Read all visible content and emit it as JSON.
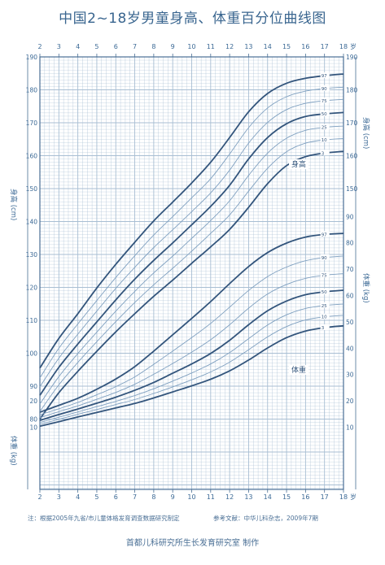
{
  "title": "中国2~18岁男童身高、体重百分位曲线图",
  "note": "注：根据2005年九省/市儿童体格发育调查数据研究制定",
  "reference": "参考文献：中华儿科杂志，2009年7期",
  "credit": "首都儿科研究所生长发育研究室  制作",
  "colors": {
    "grid": "#a8bed3",
    "axis": "#4a6f95",
    "text": "#3c6a96",
    "major_curve": "#33557c",
    "minor_curve": "#7fa0c0",
    "background": "#ffffff"
  },
  "chart_data": [
    {
      "type": "line",
      "name": "身高",
      "x_axis": {
        "label": "岁",
        "ticks": [
          2,
          3,
          4,
          5,
          6,
          7,
          8,
          9,
          10,
          11,
          12,
          13,
          14,
          15,
          16,
          17,
          18
        ],
        "range": [
          2,
          18
        ]
      },
      "y_axis": {
        "label": "身高 (cm)",
        "unit": "cm",
        "range": [
          75,
          190
        ],
        "ticks": [
          80,
          90,
          100,
          110,
          120,
          130,
          140,
          150,
          160,
          170,
          180,
          190
        ],
        "left_tick_range": [
          80,
          190
        ],
        "right_tick_range": [
          150,
          190
        ]
      },
      "grid": true,
      "x": [
        2,
        3,
        4,
        5,
        6,
        7,
        8,
        9,
        10,
        11,
        12,
        13,
        14,
        15,
        16,
        17,
        18
      ],
      "series": [
        {
          "name": "97",
          "values": [
            95.5,
            104.5,
            112.0,
            119.8,
            127.0,
            133.7,
            140.2,
            145.9,
            151.7,
            158.0,
            165.5,
            173.3,
            178.9,
            182.0,
            183.5,
            184.3,
            184.8
          ]
        },
        {
          "name": "90",
          "values": [
            92.5,
            101.5,
            108.9,
            116.0,
            123.0,
            129.6,
            135.9,
            141.5,
            147.2,
            153.0,
            160.5,
            168.5,
            174.5,
            177.9,
            179.6,
            180.4,
            180.8
          ]
        },
        {
          "name": "75",
          "values": [
            89.8,
            98.5,
            105.8,
            112.8,
            119.7,
            126.1,
            132.1,
            137.5,
            143.0,
            148.7,
            155.6,
            163.8,
            170.1,
            174.0,
            175.9,
            176.7,
            177.1
          ]
        },
        {
          "name": "50",
          "values": [
            87.2,
            95.7,
            102.8,
            109.5,
            116.2,
            122.5,
            128.2,
            133.5,
            139.0,
            144.6,
            151.0,
            159.0,
            165.5,
            169.7,
            171.9,
            172.7,
            173.1
          ]
        },
        {
          "name": "25",
          "values": [
            84.6,
            92.9,
            99.9,
            106.4,
            112.8,
            118.8,
            124.4,
            129.5,
            134.9,
            140.3,
            146.3,
            154.0,
            160.8,
            165.3,
            167.7,
            168.6,
            169.0
          ]
        },
        {
          "name": "10",
          "values": [
            82.3,
            90.4,
            97.2,
            103.5,
            109.6,
            115.4,
            120.8,
            125.8,
            131.0,
            136.4,
            142.0,
            149.2,
            156.2,
            161.2,
            163.8,
            164.8,
            165.2
          ]
        },
        {
          "name": "3",
          "values": [
            80.0,
            88.0,
            94.5,
            100.6,
            106.5,
            112.0,
            117.3,
            122.2,
            127.3,
            132.3,
            137.6,
            144.3,
            151.5,
            157.0,
            159.7,
            160.8,
            161.3
          ]
        }
      ]
    },
    {
      "type": "line",
      "name": "体重",
      "x_axis": {
        "label": "岁",
        "ticks": [
          2,
          3,
          4,
          5,
          6,
          7,
          8,
          9,
          10,
          11,
          12,
          13,
          14,
          15,
          16,
          17,
          18
        ],
        "range": [
          2,
          18
        ]
      },
      "y_axis": {
        "label": "体重 (kg)",
        "unit": "kg",
        "range": [
          5,
          95
        ],
        "ticks": [
          10,
          20,
          30,
          40,
          50,
          60,
          70,
          80,
          90
        ],
        "left_tick_range": [
          10,
          20
        ],
        "right_tick_range": [
          10,
          90
        ]
      },
      "grid": true,
      "x": [
        2,
        3,
        4,
        5,
        6,
        7,
        8,
        9,
        10,
        11,
        12,
        13,
        14,
        15,
        16,
        17,
        18
      ],
      "series": [
        {
          "name": "97",
          "values": [
            15.7,
            18.3,
            21.0,
            24.4,
            28.3,
            33.0,
            38.9,
            45.1,
            51.3,
            57.7,
            64.5,
            71.0,
            76.3,
            79.9,
            82.2,
            83.2,
            83.6
          ]
        },
        {
          "name": "90",
          "values": [
            14.7,
            17.0,
            19.4,
            22.3,
            25.4,
            29.1,
            33.9,
            38.9,
            44.0,
            49.4,
            55.6,
            61.9,
            67.2,
            70.8,
            73.2,
            74.4,
            75.0
          ]
        },
        {
          "name": "75",
          "values": [
            13.6,
            15.9,
            18.1,
            20.6,
            23.2,
            26.3,
            30.1,
            34.2,
            38.5,
            43.2,
            48.9,
            55.2,
            60.6,
            64.2,
            66.5,
            67.7,
            68.3
          ]
        },
        {
          "name": "50",
          "values": [
            12.6,
            14.8,
            16.9,
            19.1,
            21.4,
            24.0,
            27.0,
            30.5,
            34.0,
            38.0,
            43.0,
            48.9,
            54.2,
            57.9,
            60.3,
            61.4,
            62.0
          ]
        },
        {
          "name": "25",
          "values": [
            11.8,
            13.8,
            15.8,
            17.8,
            19.8,
            22.0,
            24.6,
            27.5,
            30.6,
            34.0,
            38.3,
            43.6,
            48.8,
            52.7,
            55.1,
            56.2,
            56.8
          ]
        },
        {
          "name": "10",
          "values": [
            11.1,
            13.0,
            14.9,
            16.7,
            18.6,
            20.5,
            22.8,
            25.3,
            28.0,
            31.0,
            34.7,
            39.4,
            44.3,
            48.2,
            50.7,
            51.9,
            52.5
          ]
        },
        {
          "name": "3",
          "values": [
            10.4,
            12.1,
            13.9,
            15.6,
            17.3,
            19.0,
            21.1,
            23.4,
            25.7,
            28.2,
            31.4,
            35.5,
            40.1,
            44.0,
            46.5,
            47.8,
            48.5
          ]
        }
      ]
    }
  ],
  "major_percentiles": [
    "97",
    "50",
    "3"
  ]
}
